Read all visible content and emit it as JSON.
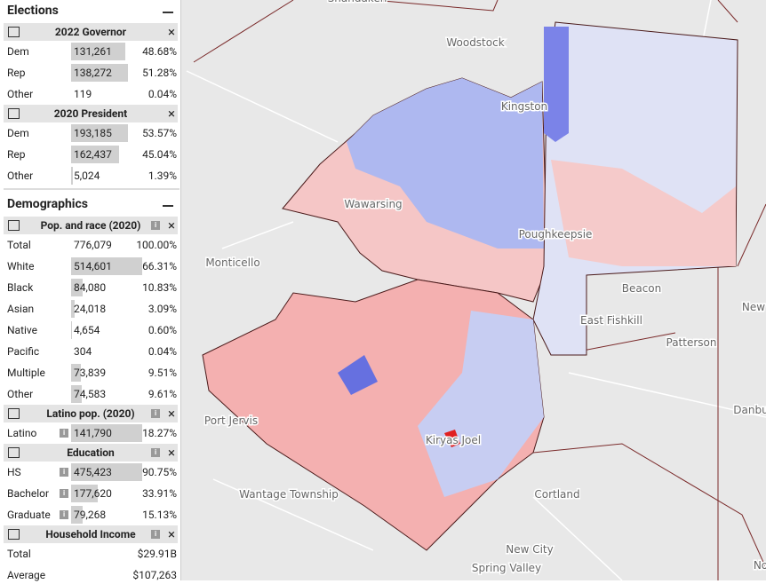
{
  "sidebar": {
    "elections": {
      "title": "Elections",
      "groups": [
        {
          "title": "2022 Governor",
          "rows": [
            [
              "Dem",
              "131,261",
              "48.68%"
            ],
            [
              "Rep",
              "138,272",
              "51.28%"
            ],
            [
              "Other",
              "119",
              "0.04%"
            ]
          ]
        },
        {
          "title": "2020 President",
          "rows": [
            [
              "Dem",
              "193,185",
              "53.57%"
            ],
            [
              "Rep",
              "162,437",
              "45.04%"
            ],
            [
              "Other",
              "5,024",
              "1.39%"
            ]
          ]
        }
      ]
    },
    "demographics": {
      "title": "Demographics",
      "groups": [
        {
          "title": "Pop. and race (2020)",
          "info": true,
          "total": [
            "Total",
            "776,079",
            "100.00%"
          ],
          "rows": [
            [
              "White",
              "514,601",
              "66.31%"
            ],
            [
              "Black",
              "84,080",
              "10.83%"
            ],
            [
              "Asian",
              "24,018",
              "3.09%"
            ],
            [
              "Native",
              "4,654",
              "0.60%"
            ],
            [
              "Pacific",
              "304",
              "0.04%"
            ],
            [
              "Multiple",
              "73,839",
              "9.51%"
            ],
            [
              "Other",
              "74,583",
              "9.61%"
            ]
          ]
        },
        {
          "title": "Latino pop. (2020)",
          "info": true,
          "row_info": true,
          "rows": [
            [
              "Latino",
              "141,790",
              "18.27%"
            ]
          ]
        },
        {
          "title": "Education",
          "info": true,
          "row_info": true,
          "rows": [
            [
              "HS",
              "475,423",
              "90.75%"
            ],
            [
              "Bachelor",
              "177,620",
              "33.91%"
            ],
            [
              "Graduate",
              "79,268",
              "15.13%"
            ]
          ]
        },
        {
          "title": "Household Income",
          "info": true,
          "rows": [
            [
              "Total",
              "$29.91B"
            ],
            [
              "Average",
              "$107,263"
            ]
          ]
        }
      ]
    }
  },
  "map": {
    "labels": [
      "Shandaken",
      "Woodstock",
      "Kingston",
      "Wawarsing",
      "Poughkeepsie",
      "Monticello",
      "Beacon",
      "East Fishkill",
      "Patterson",
      "New",
      "Port Jervis",
      "Kiryas Joel",
      "Danbu",
      "Wantage Township",
      "Cortland",
      "New City",
      "Spring Valley",
      "No"
    ]
  }
}
